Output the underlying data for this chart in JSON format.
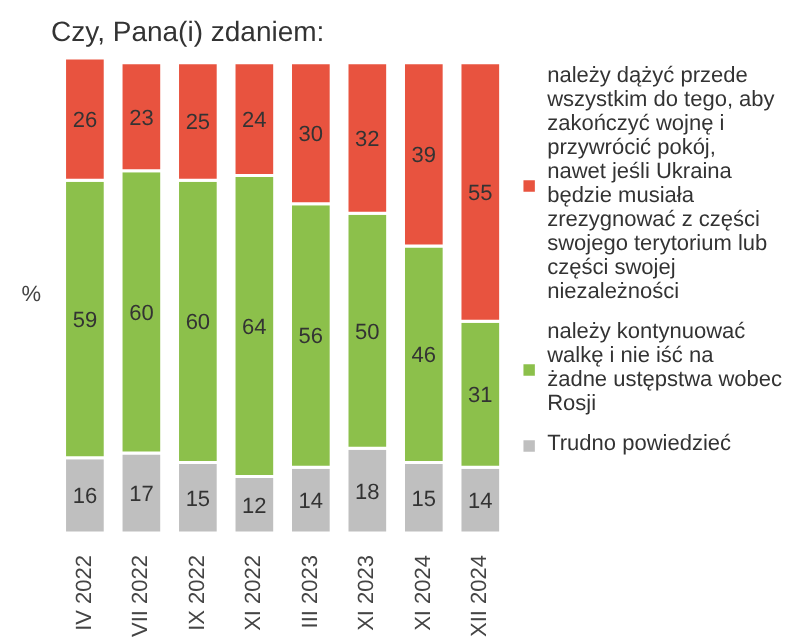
{
  "chart_data": {
    "type": "bar",
    "title": "Czy, Pana(i) zdaniem:",
    "ylabel": "%",
    "stacked": true,
    "data_labels": true,
    "legend": "right",
    "categories": [
      "IV 2022",
      "VII 2022",
      "IX 2022",
      "XI 2022",
      "III 2023",
      "XI 2023",
      "XI 2024",
      "XII 2024"
    ],
    "series": [
      {
        "name": "Trudno powiedzieć",
        "color": "#bfbfbf",
        "values": [
          16,
          17,
          15,
          12,
          14,
          18,
          15,
          14
        ]
      },
      {
        "name": "należy kontynuować walkę i nie iść na żadne ustępstwa wobec Rosji",
        "color": "#8cc04b",
        "values": [
          59,
          60,
          60,
          64,
          56,
          50,
          46,
          31
        ]
      },
      {
        "name": "należy dążyć przede wszystkim do tego, aby zakończyć wojnę i przywrócić pokój, nawet jeśli Ukraina będzie musiała zrezygnować z części swojego terytorium lub części swojej niezależności",
        "color": "#e8533f",
        "values": [
          26,
          23,
          25,
          24,
          30,
          32,
          39,
          55
        ]
      }
    ]
  }
}
